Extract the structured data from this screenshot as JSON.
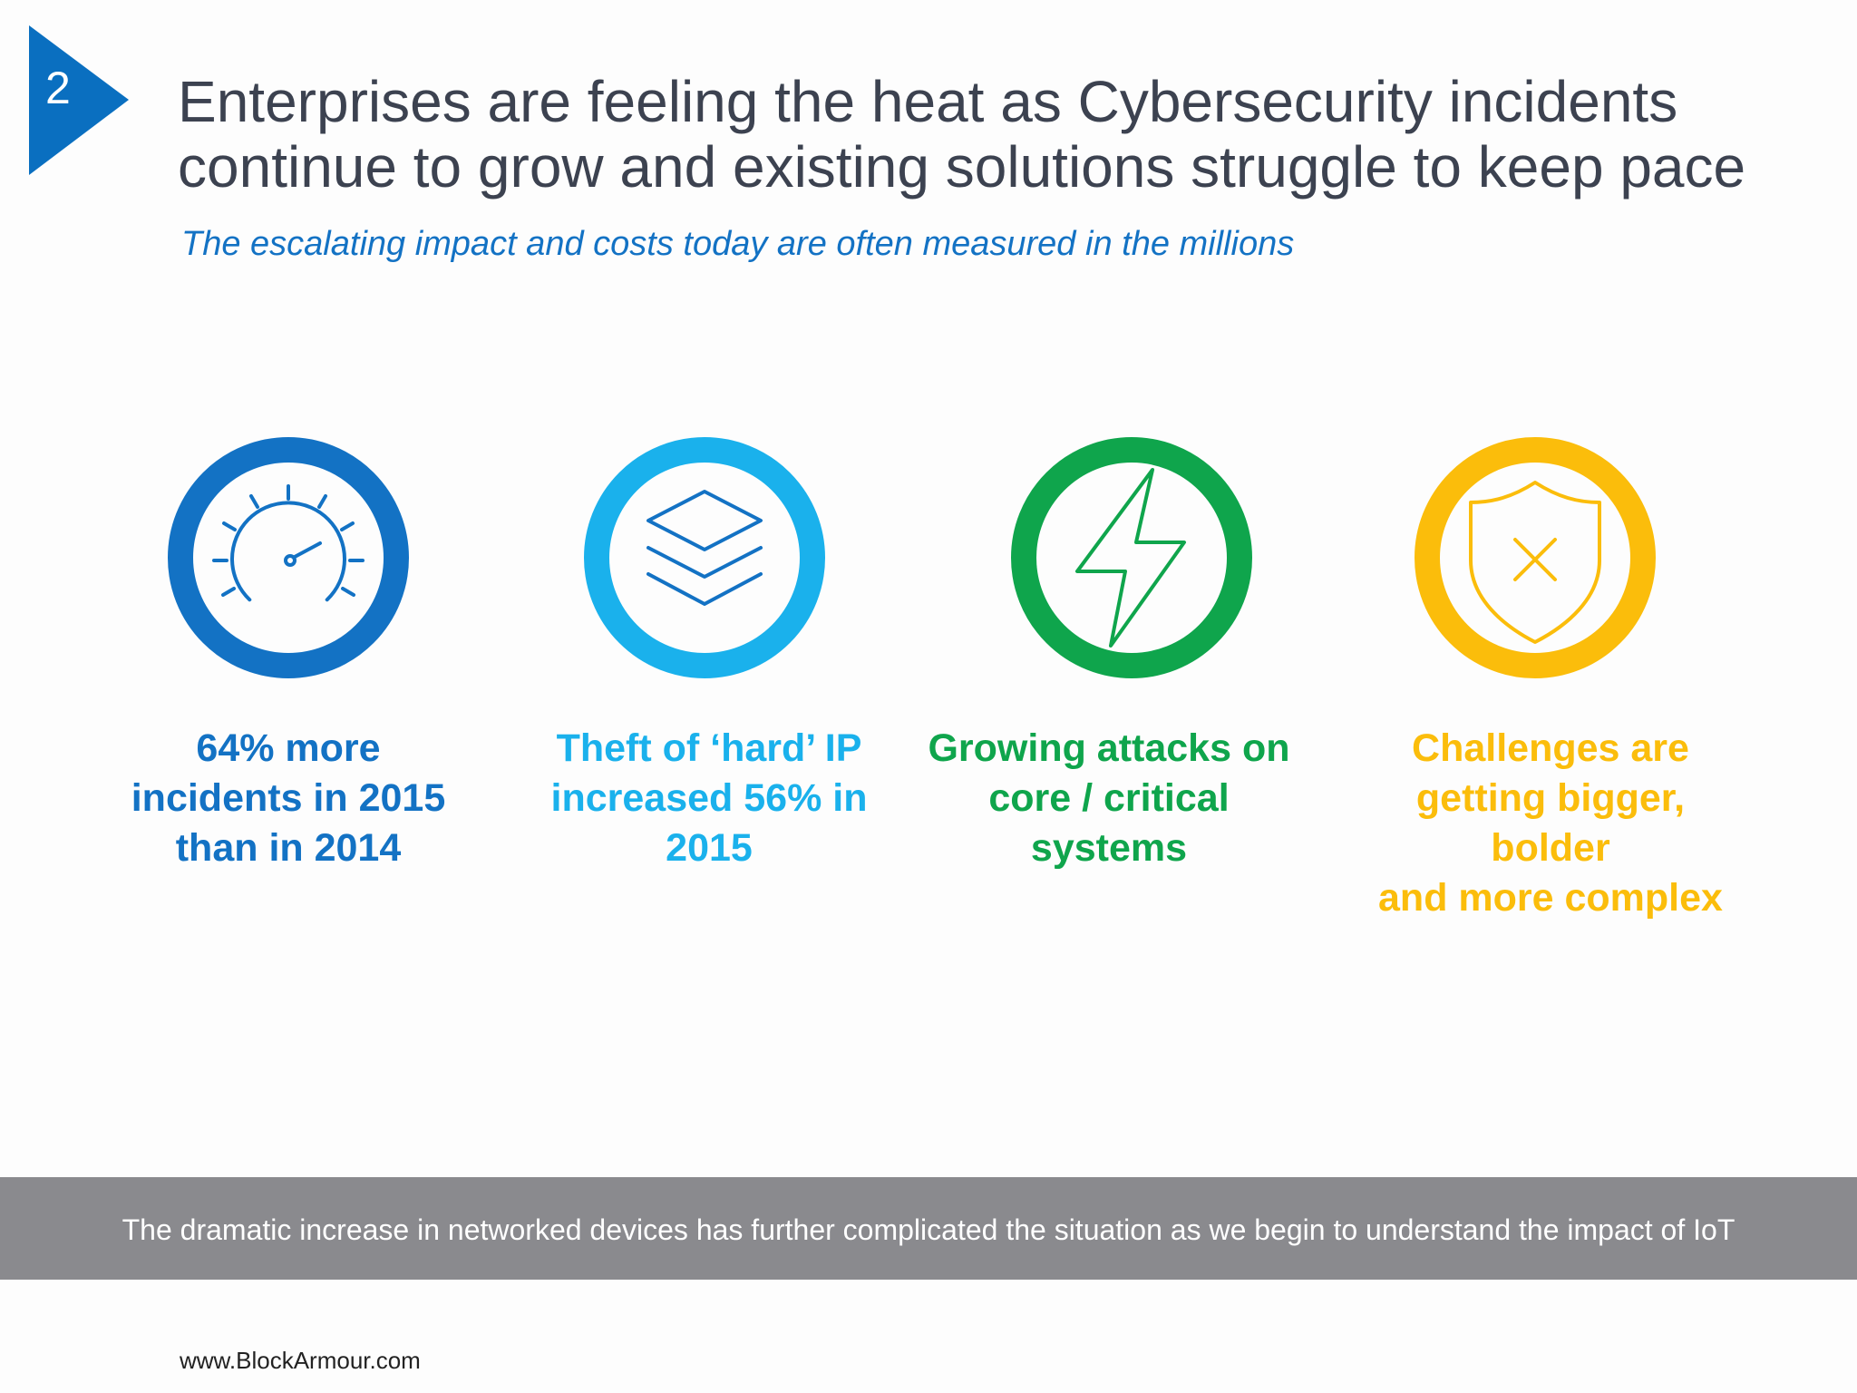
{
  "slide": {
    "number": "2",
    "title_line1": "Enterprises are feeling the heat as Cybersecurity incidents",
    "title_line2": "continue to grow and existing solutions struggle to keep pace",
    "subtitle": "The escalating impact and costs today are often measured in the millions"
  },
  "stats": [
    {
      "icon": "speedometer-icon",
      "color": "#1372c4",
      "line1": "64% more",
      "line2": "incidents in 2015",
      "line3": "than in 2014"
    },
    {
      "icon": "layers-icon",
      "color": "#1ab1ec",
      "line1": "Theft of ‘hard’ IP",
      "line2": "increased 56% in",
      "line3": "2015"
    },
    {
      "icon": "lightning-bolt-icon",
      "color": "#0fa54c",
      "line1": "Growing attacks on",
      "line2": "core / critical",
      "line3": "systems"
    },
    {
      "icon": "shield-x-icon",
      "color": "#fbbd0b",
      "line1": "Challenges are",
      "line2": "getting bigger, bolder",
      "line3": "and more complex"
    }
  ],
  "footer": {
    "text": "The dramatic increase in networked devices has further complicated the situation as we begin to understand the impact of IoT"
  },
  "website": "www.BlockArmour.com",
  "colors": {
    "accent_blue": "#0a6fc0",
    "title": "#3c4250",
    "footer_bar": "#8a8a8e"
  }
}
